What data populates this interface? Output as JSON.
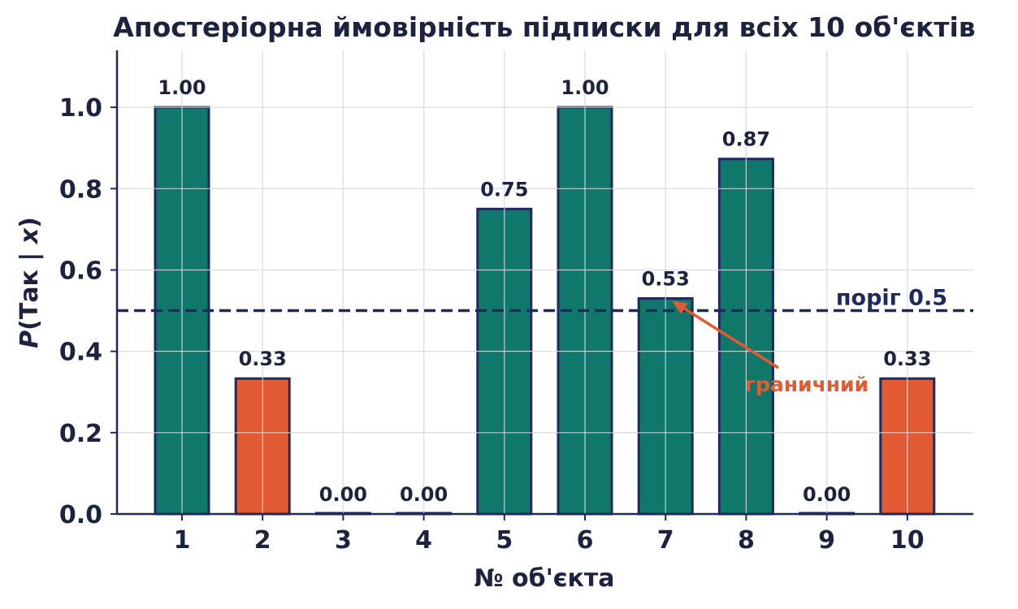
{
  "chart_data": {
    "type": "bar",
    "title": "Апостеріорна ймовірність підписки для всіх 10 об'єктів",
    "xlabel": "№ об'єкта",
    "ylabel_prefix": "P",
    "ylabel_mid": "(Так | ",
    "ylabel_var": "x",
    "ylabel_suffix": ")",
    "categories": [
      "1",
      "2",
      "3",
      "4",
      "5",
      "6",
      "7",
      "8",
      "9",
      "10"
    ],
    "values": [
      1.0,
      0.333,
      0.0,
      0.0,
      0.75,
      1.0,
      0.53,
      0.873,
      0.0,
      0.333
    ],
    "value_labels": [
      "1.00",
      "0.33",
      "0.00",
      "0.00",
      "0.75",
      "1.00",
      "0.53",
      "0.87",
      "0.00",
      "0.33"
    ],
    "ylim": [
      0,
      1.14
    ],
    "yticks": [
      0.0,
      0.2,
      0.4,
      0.6,
      0.8,
      1.0
    ],
    "ytick_labels": [
      "0.0",
      "0.2",
      "0.4",
      "0.6",
      "0.8",
      "1.0"
    ],
    "grid": true,
    "threshold": {
      "value": 0.5,
      "label": "поріг 0.5",
      "color": "#1e2a5e"
    },
    "annotation": {
      "label": "граничний",
      "target_index": 6,
      "color": "#e25a32"
    },
    "colors": {
      "above": "#10776b",
      "below": "#e25a32",
      "edge": "#1e2a5e",
      "grid": "#dcdfe6",
      "axis": "#1e2a5e",
      "text": "#1c2340"
    }
  }
}
